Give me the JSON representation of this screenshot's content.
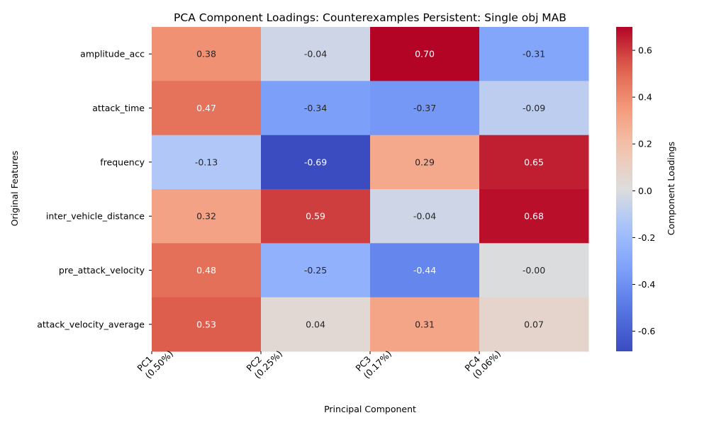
{
  "chart_data": {
    "type": "heatmap",
    "title": "PCA Component Loadings: Counterexamples Persistent: Single obj MAB",
    "xlabel": "Principal Component",
    "ylabel": "Original Features",
    "colorbar_label": "Component Loadings",
    "colormap": "coolwarm",
    "vmin": -0.686,
    "vmax": 0.7,
    "columns": [
      {
        "line1": "PC1",
        "line2": "(0.50%)"
      },
      {
        "line1": "PC2",
        "line2": "(0.25%)"
      },
      {
        "line1": "PC3",
        "line2": "(0.17%)"
      },
      {
        "line1": "PC4",
        "line2": "(0.06%)"
      }
    ],
    "rows": [
      "amplitude_acc",
      "attack_time",
      "frequency",
      "inter_vehicle_distance",
      "pre_attack_velocity",
      "attack_velocity_average"
    ],
    "values": [
      [
        0.38,
        -0.04,
        0.7,
        -0.31
      ],
      [
        0.47,
        -0.34,
        -0.37,
        -0.09
      ],
      [
        -0.13,
        -0.69,
        0.29,
        0.65
      ],
      [
        0.32,
        0.59,
        -0.04,
        0.68
      ],
      [
        0.48,
        -0.25,
        -0.44,
        -0.0
      ],
      [
        0.53,
        0.04,
        0.31,
        0.07
      ]
    ],
    "value_labels": [
      [
        "0.38",
        "-0.04",
        "0.70",
        "-0.31"
      ],
      [
        "0.47",
        "-0.34",
        "-0.37",
        "-0.09"
      ],
      [
        "-0.13",
        "-0.69",
        "0.29",
        "0.65"
      ],
      [
        "0.32",
        "0.59",
        "-0.04",
        "0.68"
      ],
      [
        "0.48",
        "-0.25",
        "-0.44",
        "-0.00"
      ],
      [
        "0.53",
        "0.04",
        "0.31",
        "0.07"
      ]
    ],
    "colorbar_ticks": [
      "-0.6",
      "-0.4",
      "-0.2",
      "0.0",
      "0.2",
      "0.4",
      "0.6"
    ]
  }
}
